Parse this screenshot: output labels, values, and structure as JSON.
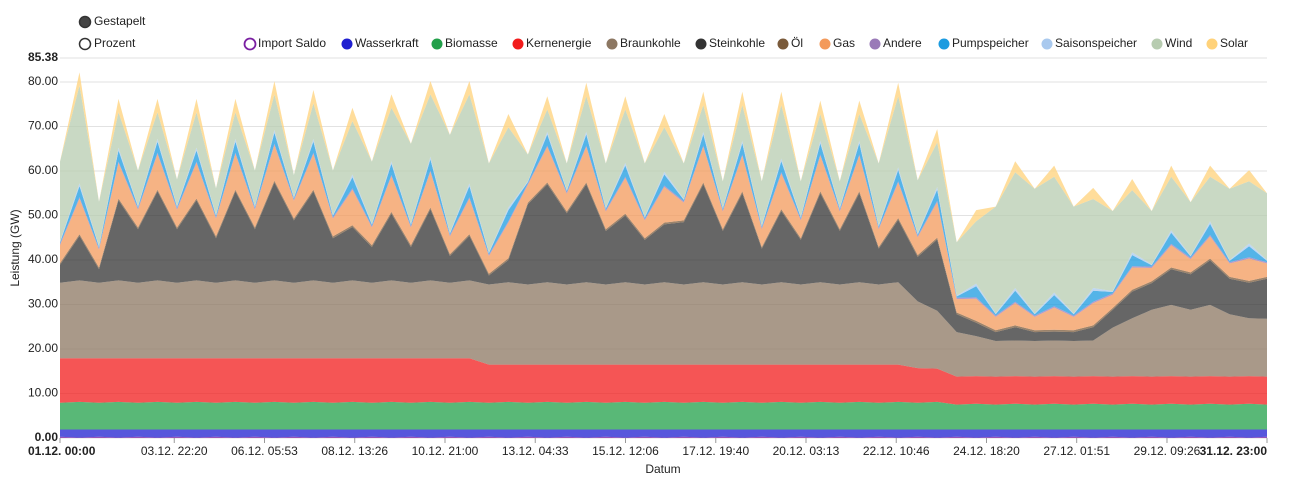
{
  "chart_data": {
    "type": "stacked-area",
    "modes": [
      "Gestapelt",
      "Prozent"
    ],
    "ylabel": "Leistung (GW)",
    "xlabel": "Datum",
    "ylim": [
      0,
      85.38
    ],
    "yticks": [
      {
        "value": 0,
        "label": "0.00"
      },
      {
        "value": 10,
        "label": "10.00"
      },
      {
        "value": 20,
        "label": "20.00"
      },
      {
        "value": 30,
        "label": "30.00"
      },
      {
        "value": 40,
        "label": "40.00"
      },
      {
        "value": 50,
        "label": "50.00"
      },
      {
        "value": 60,
        "label": "60.00"
      },
      {
        "value": 70,
        "label": "70.00"
      },
      {
        "value": 80,
        "label": "80.00"
      },
      {
        "value": 85.38,
        "label": "85.38"
      }
    ],
    "xlim": [
      0,
      743
    ],
    "xticks": [
      {
        "value": 0,
        "label": "01.12. 00:00"
      },
      {
        "value": 70.33,
        "label": "03.12. 22:20"
      },
      {
        "value": 125.88,
        "label": "06.12. 05:53"
      },
      {
        "value": 181.43,
        "label": "08.12. 13:26"
      },
      {
        "value": 237,
        "label": "10.12. 21:00"
      },
      {
        "value": 292.55,
        "label": "13.12. 04:33"
      },
      {
        "value": 348.1,
        "label": "15.12. 12:06"
      },
      {
        "value": 403.67,
        "label": "17.12. 19:40"
      },
      {
        "value": 459.22,
        "label": "20.12. 03:13"
      },
      {
        "value": 514.77,
        "label": "22.12. 10:46"
      },
      {
        "value": 570.33,
        "label": "24.12. 18:20"
      },
      {
        "value": 625.85,
        "label": "27.12. 01:51"
      },
      {
        "value": 681.43,
        "label": "29.12. 09:26"
      },
      {
        "value": 743,
        "label": "31.12. 23:00"
      }
    ],
    "grid": true,
    "x": [
      0,
      12,
      24,
      36,
      48,
      60,
      72,
      84,
      96,
      108,
      120,
      132,
      144,
      156,
      168,
      180,
      192,
      204,
      216,
      228,
      240,
      252,
      264,
      276,
      288,
      300,
      312,
      324,
      336,
      348,
      360,
      372,
      384,
      396,
      408,
      420,
      432,
      444,
      456,
      468,
      480,
      492,
      504,
      516,
      528,
      540,
      552,
      564,
      576,
      588,
      600,
      612,
      624,
      636,
      648,
      660,
      672,
      684,
      696,
      708,
      720,
      732,
      743
    ],
    "series": [
      {
        "name": "Import Saldo",
        "color": "#7a1fa2",
        "values": [
          0.3,
          0.1,
          0.3,
          0.1,
          0.3,
          0.1,
          0.3,
          0.1,
          0.3,
          0.1,
          0.3,
          0.1,
          0.3,
          0.1,
          0.3,
          0.1,
          0.3,
          0.1,
          0.3,
          0.1,
          0.3,
          0.1,
          0.3,
          0.1,
          0.3,
          0.1,
          0.3,
          0.1,
          0.3,
          0.1,
          0.3,
          0.1,
          0.3,
          0.1,
          0.3,
          0.1,
          0.3,
          0.1,
          0.3,
          0.1,
          0.3,
          0.1,
          0.3,
          0.1,
          0.3,
          0.1,
          0.3,
          0.1,
          0.3,
          0.1,
          0.3,
          0.1,
          0.3,
          0.1,
          0.3,
          0.1,
          0.3,
          0.1,
          0.3,
          0.1,
          0.3,
          0.1,
          0.3
        ]
      },
      {
        "name": "Wasserkraft",
        "color": "#1f1fd0",
        "values": [
          1.6,
          1.8,
          1.6,
          1.8,
          1.6,
          1.8,
          1.6,
          1.8,
          1.6,
          1.8,
          1.6,
          1.8,
          1.6,
          1.8,
          1.6,
          1.8,
          1.6,
          1.8,
          1.6,
          1.8,
          1.6,
          1.8,
          1.6,
          1.8,
          1.6,
          1.8,
          1.6,
          1.8,
          1.6,
          1.8,
          1.6,
          1.8,
          1.6,
          1.8,
          1.6,
          1.8,
          1.6,
          1.8,
          1.6,
          1.8,
          1.6,
          1.8,
          1.6,
          1.8,
          1.6,
          1.8,
          1.6,
          1.8,
          1.6,
          1.8,
          1.6,
          1.8,
          1.6,
          1.8,
          1.6,
          1.8,
          1.6,
          1.8,
          1.6,
          1.8,
          1.6,
          1.8,
          1.6
        ]
      },
      {
        "name": "Biomasse",
        "color": "#22a04a",
        "values": [
          6,
          6.2,
          6,
          6.2,
          6,
          6.2,
          6,
          6.2,
          6,
          6.2,
          6,
          6.2,
          6,
          6.2,
          6,
          6.2,
          6,
          6.2,
          6,
          6.2,
          6,
          6.2,
          6,
          6.2,
          6,
          6.2,
          6,
          6.2,
          6,
          6.2,
          6,
          6.2,
          6,
          6.2,
          6,
          6.2,
          6,
          6.2,
          6,
          6.2,
          6,
          6.2,
          6,
          6.2,
          6,
          6.2,
          5.6,
          5.8,
          5.6,
          5.8,
          5.6,
          5.8,
          5.6,
          5.8,
          5.6,
          5.8,
          5.6,
          5.8,
          5.6,
          5.8,
          5.6,
          5.8,
          5.6
        ]
      },
      {
        "name": "Kernenergie",
        "color": "#f21c1c",
        "values": [
          10,
          9.8,
          10,
          9.8,
          10,
          9.8,
          10,
          9.8,
          10,
          9.8,
          10,
          9.8,
          10,
          9.8,
          10,
          9.8,
          10,
          9.8,
          10,
          9.8,
          10,
          9.8,
          8.6,
          8.4,
          8.6,
          8.4,
          8.6,
          8.4,
          8.6,
          8.4,
          8.6,
          8.4,
          8.6,
          8.4,
          8.6,
          8.4,
          8.6,
          8.4,
          8.6,
          8.4,
          8.6,
          8.4,
          8.6,
          8.4,
          7.8,
          7.5,
          6.3,
          6.2,
          6.3,
          6.2,
          6.3,
          6.2,
          6.3,
          6.2,
          6.3,
          6.2,
          6.3,
          6.2,
          6.3,
          6.2,
          6.3,
          6.2,
          6.3
        ]
      },
      {
        "name": "Braunkohle",
        "color": "#8c7762",
        "values": [
          17,
          17.5,
          17,
          17.5,
          17,
          17.5,
          17,
          17.5,
          17,
          17.5,
          17,
          17.5,
          17,
          17.5,
          17,
          17.5,
          17,
          17.5,
          17,
          17.5,
          17,
          17.5,
          18,
          18.5,
          18,
          18.5,
          18,
          18.5,
          18,
          18.5,
          18,
          18.5,
          18,
          18.5,
          18,
          18.5,
          18,
          18.5,
          18,
          18.5,
          18,
          18.5,
          18,
          18.5,
          15,
          13,
          10,
          9,
          8,
          8,
          8,
          8,
          8,
          8,
          11,
          13,
          15,
          16,
          15,
          16,
          14,
          13,
          13
        ]
      },
      {
        "name": "Steinkohle",
        "color": "#333333",
        "values": [
          4,
          10,
          3,
          18,
          12,
          20,
          12,
          18,
          10,
          20,
          12,
          22,
          14,
          20,
          10,
          12,
          8,
          15,
          8,
          16,
          6,
          10,
          2,
          5,
          18,
          22,
          16,
          22,
          12,
          15,
          10,
          13,
          14,
          22,
          12,
          20,
          8,
          16,
          10,
          20,
          12,
          20,
          8,
          14,
          10,
          16,
          4,
          3,
          2,
          3,
          2,
          2,
          2,
          3,
          4,
          6,
          6,
          8,
          8,
          10,
          8,
          8,
          9
        ]
      },
      {
        "name": "Öl",
        "color": "#7a5a3a",
        "values": [
          0.4,
          0.4,
          0.4,
          0.4,
          0.4,
          0.4,
          0.4,
          0.4,
          0.4,
          0.4,
          0.4,
          0.4,
          0.4,
          0.4,
          0.4,
          0.4,
          0.4,
          0.4,
          0.4,
          0.4,
          0.4,
          0.4,
          0.4,
          0.4,
          0.4,
          0.4,
          0.4,
          0.4,
          0.4,
          0.4,
          0.4,
          0.4,
          0.4,
          0.4,
          0.4,
          0.4,
          0.4,
          0.4,
          0.4,
          0.4,
          0.4,
          0.4,
          0.4,
          0.4,
          0.4,
          0.4,
          0.4,
          0.4,
          0.4,
          0.4,
          0.4,
          0.4,
          0.4,
          0.4,
          0.4,
          0.4,
          0.4,
          0.4,
          0.4,
          0.4,
          0.4,
          0.4,
          0.4
        ]
      },
      {
        "name": "Gas",
        "color": "#f39a5b",
        "values": [
          4,
          8,
          4,
          8,
          4,
          8,
          4,
          8,
          4,
          8,
          4,
          8,
          4,
          8,
          4,
          8,
          4,
          8,
          4,
          8,
          4,
          8,
          4,
          8,
          4,
          8,
          4,
          8,
          4,
          8,
          4,
          8,
          4,
          8,
          4,
          8,
          4,
          8,
          4,
          8,
          4,
          8,
          4,
          8,
          4,
          8,
          3,
          5,
          3,
          5,
          3,
          5,
          3,
          5,
          3,
          5,
          3,
          5,
          3,
          5,
          3,
          5,
          3
        ]
      },
      {
        "name": "Andere",
        "color": "#9a7ab8",
        "values": [
          0.3,
          0.3,
          0.3,
          0.3,
          0.3,
          0.3,
          0.3,
          0.3,
          0.3,
          0.3,
          0.3,
          0.3,
          0.3,
          0.3,
          0.3,
          0.3,
          0.3,
          0.3,
          0.3,
          0.3,
          0.3,
          0.3,
          0.3,
          0.3,
          0.3,
          0.3,
          0.3,
          0.3,
          0.3,
          0.3,
          0.3,
          0.3,
          0.3,
          0.3,
          0.3,
          0.3,
          0.3,
          0.3,
          0.3,
          0.3,
          0.3,
          0.3,
          0.3,
          0.3,
          0.3,
          0.3,
          0.3,
          0.3,
          0.3,
          0.3,
          0.3,
          0.3,
          0.3,
          0.3,
          0.3,
          0.3,
          0.3,
          0.3,
          0.3,
          0.3,
          0.3,
          0.3,
          0.3
        ]
      },
      {
        "name": "Pumpspeicher",
        "color": "#1b9be0",
        "values": [
          0.3,
          2.5,
          0.3,
          2.5,
          0.3,
          2.5,
          0.3,
          2.5,
          0.3,
          2.5,
          0.3,
          2.5,
          0.3,
          2.5,
          0.3,
          2.5,
          0.3,
          2.5,
          0.3,
          2.5,
          0.3,
          2.5,
          0.3,
          2.5,
          0.3,
          2.5,
          0.3,
          2.5,
          0.3,
          2.5,
          0.3,
          2.5,
          0.3,
          2.5,
          0.3,
          2.5,
          0.3,
          2.5,
          0.3,
          2.5,
          0.3,
          2.5,
          0.3,
          2.5,
          0.3,
          2.5,
          0.3,
          2.5,
          0.3,
          2.5,
          0.3,
          2.5,
          0.3,
          2.5,
          0.3,
          2.5,
          0.3,
          2.5,
          0.3,
          2.5,
          0.3,
          2.5,
          0.3
        ]
      },
      {
        "name": "Saisonspeicher",
        "color": "#a9c9ee",
        "values": [
          0.2,
          0.6,
          0.2,
          0.6,
          0.2,
          0.6,
          0.2,
          0.6,
          0.2,
          0.6,
          0.2,
          0.6,
          0.2,
          0.6,
          0.2,
          0.6,
          0.2,
          0.6,
          0.2,
          0.6,
          0.2,
          0.6,
          0.2,
          0.6,
          0.2,
          0.6,
          0.2,
          0.6,
          0.2,
          0.6,
          0.2,
          0.6,
          0.2,
          0.6,
          0.2,
          0.6,
          0.2,
          0.6,
          0.2,
          0.6,
          0.2,
          0.6,
          0.2,
          0.6,
          0.2,
          0.6,
          0.2,
          0.6,
          0.2,
          0.6,
          0.2,
          0.6,
          0.2,
          0.6,
          0.2,
          0.6,
          0.2,
          0.6,
          0.2,
          0.6,
          0.2,
          0.6,
          0.2
        ]
      },
      {
        "name": "Wind",
        "color": "#b7ccb0",
        "values": [
          18,
          22,
          10,
          8,
          8,
          6,
          6,
          8,
          6,
          6,
          8,
          8,
          5,
          8,
          10,
          12,
          14,
          12,
          18,
          14,
          22,
          20,
          20,
          18,
          6,
          5,
          6,
          8,
          10,
          12,
          12,
          10,
          8,
          6,
          6,
          8,
          10,
          12,
          8,
          6,
          6,
          6,
          14,
          16,
          12,
          10,
          12,
          14,
          24,
          26,
          28,
          26,
          24,
          20,
          18,
          14,
          12,
          12,
          12,
          10,
          16,
          14,
          15
        ]
      },
      {
        "name": "Solar",
        "color": "#ffd27a",
        "values": [
          0,
          3,
          0,
          3,
          0,
          3,
          0,
          3,
          0,
          3,
          0,
          3,
          0,
          3,
          0,
          3,
          0,
          3,
          0,
          3,
          0,
          3,
          0,
          3,
          0,
          3,
          0,
          3,
          0,
          3,
          0,
          3,
          0,
          3,
          0,
          3,
          0,
          3,
          0,
          3,
          0,
          3,
          0,
          3,
          0,
          3,
          0,
          2.5,
          0,
          2.5,
          0,
          2.5,
          0,
          2.5,
          0,
          2.5,
          0,
          2.5,
          0,
          2.5,
          0,
          2.5,
          0
        ]
      }
    ]
  }
}
